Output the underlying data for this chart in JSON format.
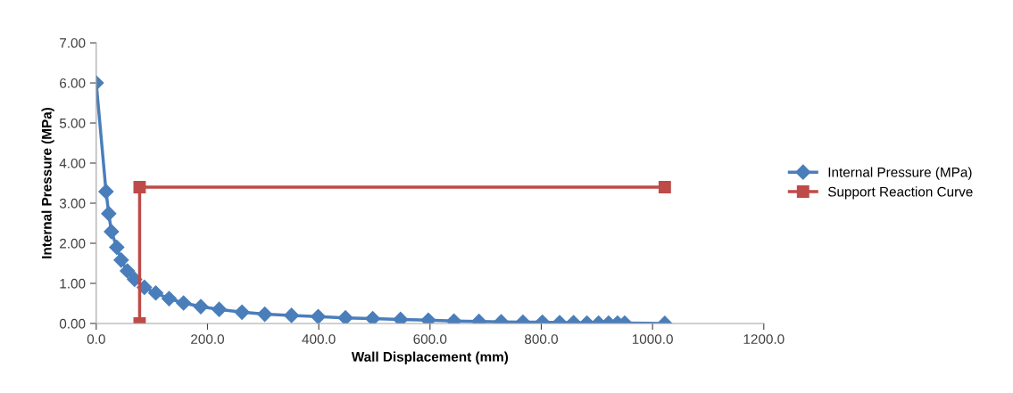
{
  "chart_data": {
    "type": "line",
    "xlabel": "Wall Displacement (mm)",
    "ylabel": "Internal Pressure (MPa)",
    "xlim": [
      0,
      1200
    ],
    "ylim": [
      0,
      7
    ],
    "xticks": [
      {
        "value": 0,
        "label": "0.0"
      },
      {
        "value": 200,
        "label": "200.0"
      },
      {
        "value": 400,
        "label": "400.0"
      },
      {
        "value": 600,
        "label": "600.0"
      },
      {
        "value": 800,
        "label": "800.0"
      },
      {
        "value": 1000,
        "label": "1000.0"
      },
      {
        "value": 1200,
        "label": "1200.0"
      }
    ],
    "yticks": [
      {
        "value": 0,
        "label": "0.00"
      },
      {
        "value": 1,
        "label": "1.00"
      },
      {
        "value": 2,
        "label": "2.00"
      },
      {
        "value": 3,
        "label": "3.00"
      },
      {
        "value": 4,
        "label": "4.00"
      },
      {
        "value": 5,
        "label": "5.00"
      },
      {
        "value": 6,
        "label": "6.00"
      },
      {
        "value": 7,
        "label": "7.00"
      }
    ],
    "grid": false,
    "legend": "right",
    "line_style": "solid",
    "series": [
      {
        "name": "Internal Pressure (MPa)",
        "color": "#4a7ebb",
        "marker": "diamond",
        "x": [
          0,
          17.6,
          22.5,
          27.3,
          36.9,
          44.9,
          56,
          69,
          86.6,
          107,
          131,
          157,
          188,
          221,
          262,
          303,
          351,
          399,
          448,
          497,
          547,
          597,
          643,
          688,
          728,
          767,
          802,
          833,
          858,
          882,
          903,
          921,
          937,
          950,
          1022
        ],
        "values": [
          6,
          3.29,
          2.74,
          2.29,
          1.9,
          1.58,
          1.31,
          1.1,
          0.9,
          0.76,
          0.62,
          0.51,
          0.42,
          0.35,
          0.28,
          0.23,
          0.2,
          0.17,
          0.14,
          0.12,
          0.1,
          0.08,
          0.06,
          0.05,
          0.04,
          0.03,
          0.03,
          0.02,
          0.02,
          0.01,
          0.01,
          0.01,
          0.01,
          0.01,
          0.0
        ]
      },
      {
        "name": "Support Reaction Curve",
        "color": "#be4b48",
        "marker": "square",
        "x": [
          78,
          78,
          1022
        ],
        "values": [
          0,
          3.4,
          3.4
        ]
      }
    ]
  }
}
